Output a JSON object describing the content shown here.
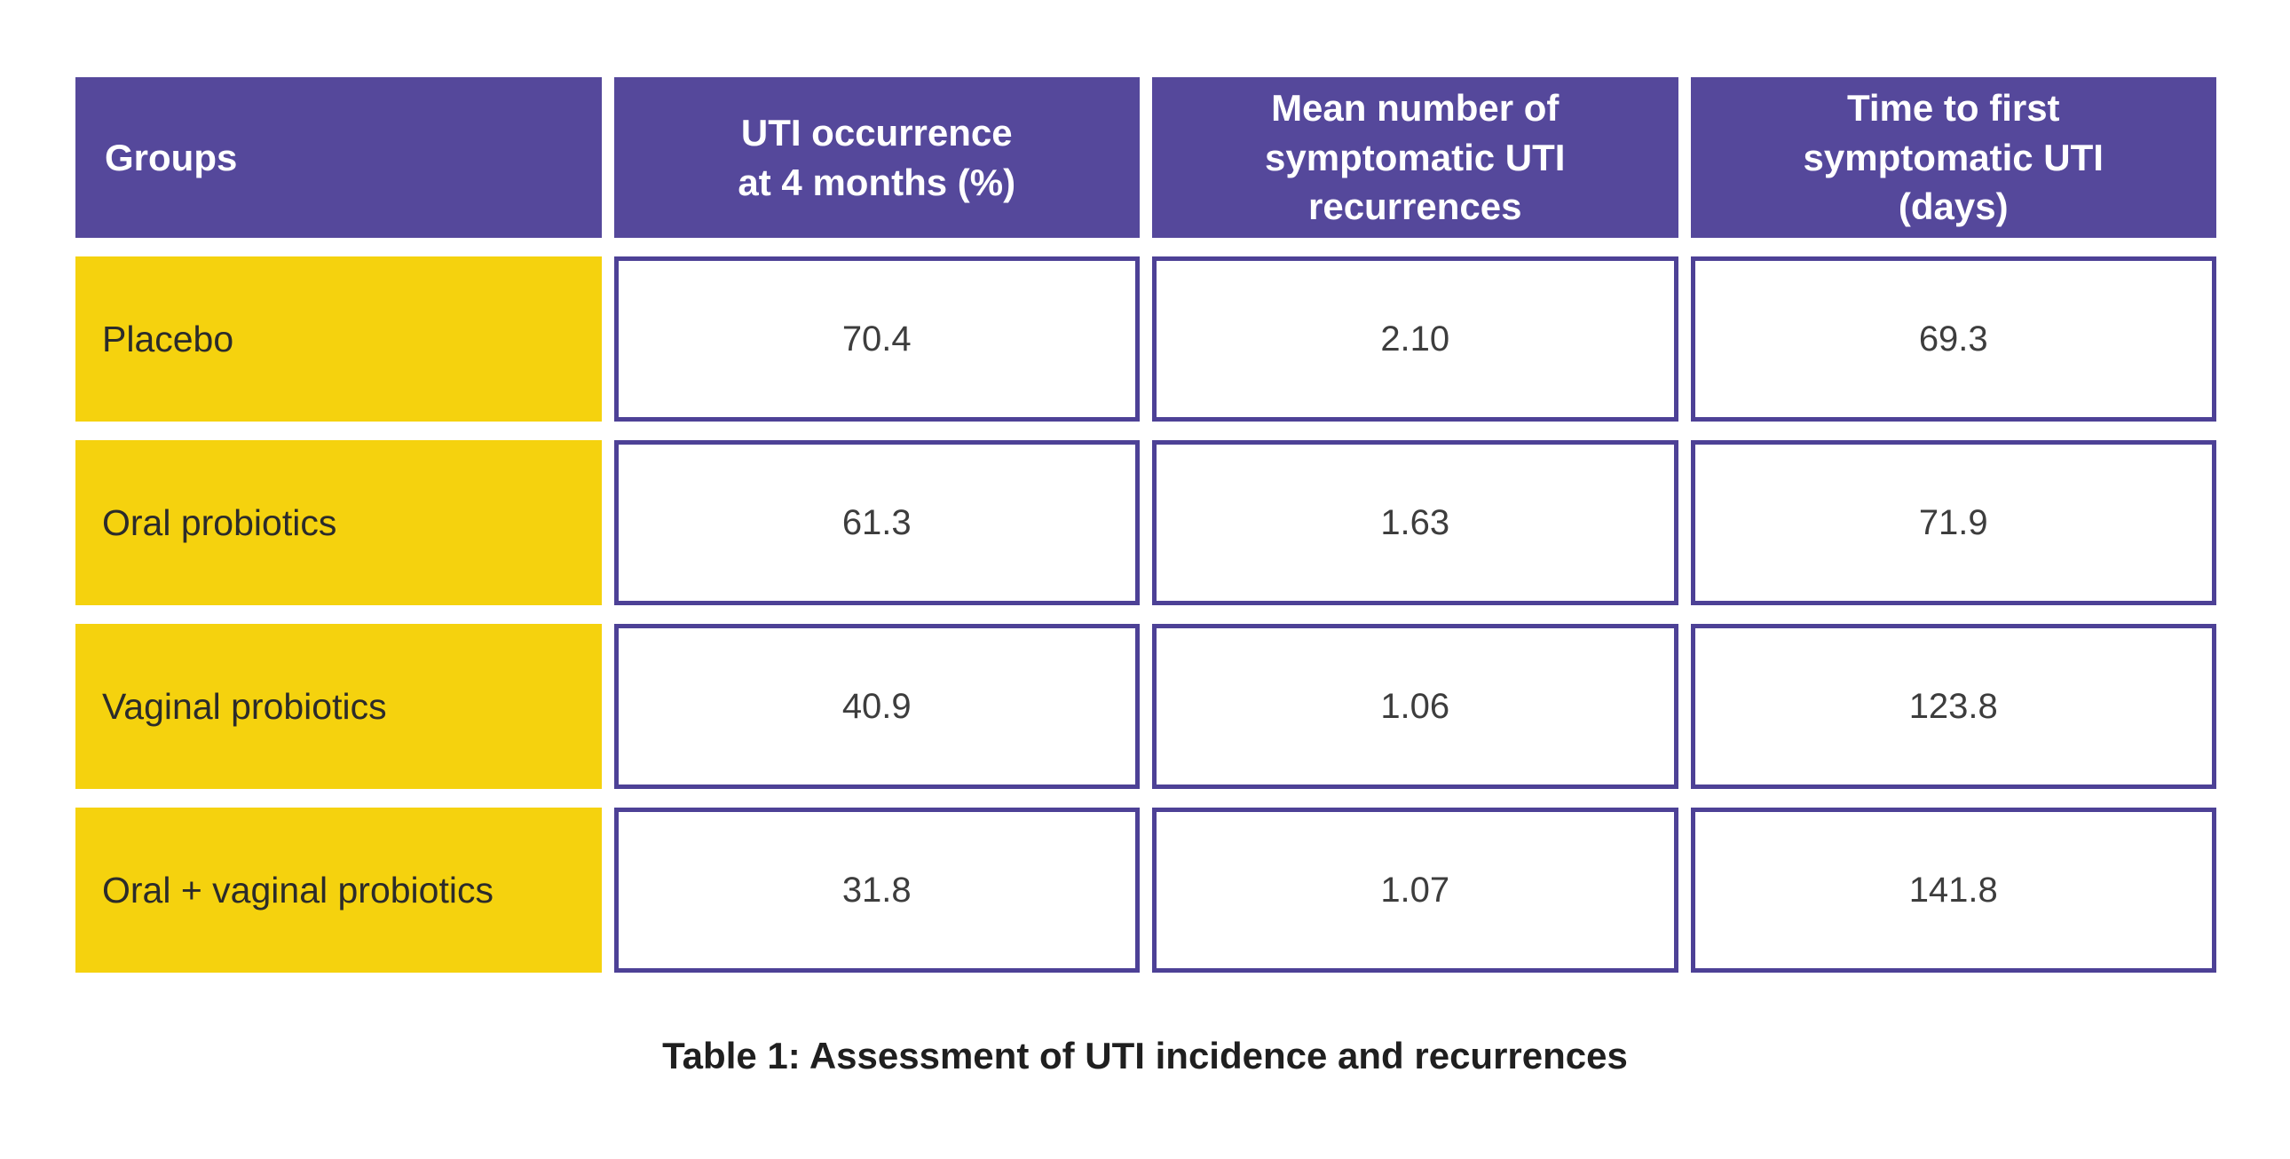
{
  "table": {
    "header": {
      "groups": "Groups",
      "uti_occurrence": "UTI occurrence\nat 4 months (%)",
      "mean_recurrences": "Mean number of\nsymptomatic UTI\nrecurrences",
      "time_to_first": "Time to first\nsymptomatic UTI\n(days)"
    },
    "rows": [
      {
        "label": "Placebo",
        "uti_occurrence": "70.4",
        "mean_recurrences": "2.10",
        "time_to_first": "69.3"
      },
      {
        "label": "Oral probiotics",
        "uti_occurrence": "61.3",
        "mean_recurrences": "1.63",
        "time_to_first": "71.9"
      },
      {
        "label": "Vaginal probiotics",
        "uti_occurrence": "40.9",
        "mean_recurrences": "1.06",
        "time_to_first": "123.8"
      },
      {
        "label": "Oral + vaginal probiotics",
        "uti_occurrence": "31.8",
        "mean_recurrences": "1.07",
        "time_to_first": "141.8"
      }
    ],
    "caption": "Table 1: Assessment of UTI incidence and recurrences"
  },
  "colors": {
    "header_purple": "#55489B",
    "cell_border_purple": "#4D4196",
    "row_label_yellow": "#F5D20E",
    "header_text": "#FFFFFF",
    "body_text": "#2B2B2B"
  },
  "chart_data": {
    "type": "table",
    "title": "Table 1: Assessment of UTI incidence and recurrences",
    "columns": [
      "Groups",
      "UTI occurrence at 4 months (%)",
      "Mean number of symptomatic UTI recurrences",
      "Time to first symptomatic UTI (days)"
    ],
    "rows": [
      [
        "Placebo",
        70.4,
        2.1,
        69.3
      ],
      [
        "Oral probiotics",
        61.3,
        1.63,
        71.9
      ],
      [
        "Vaginal probiotics",
        40.9,
        1.06,
        123.8
      ],
      [
        "Oral + vaginal probiotics",
        31.8,
        1.07,
        141.8
      ]
    ]
  }
}
